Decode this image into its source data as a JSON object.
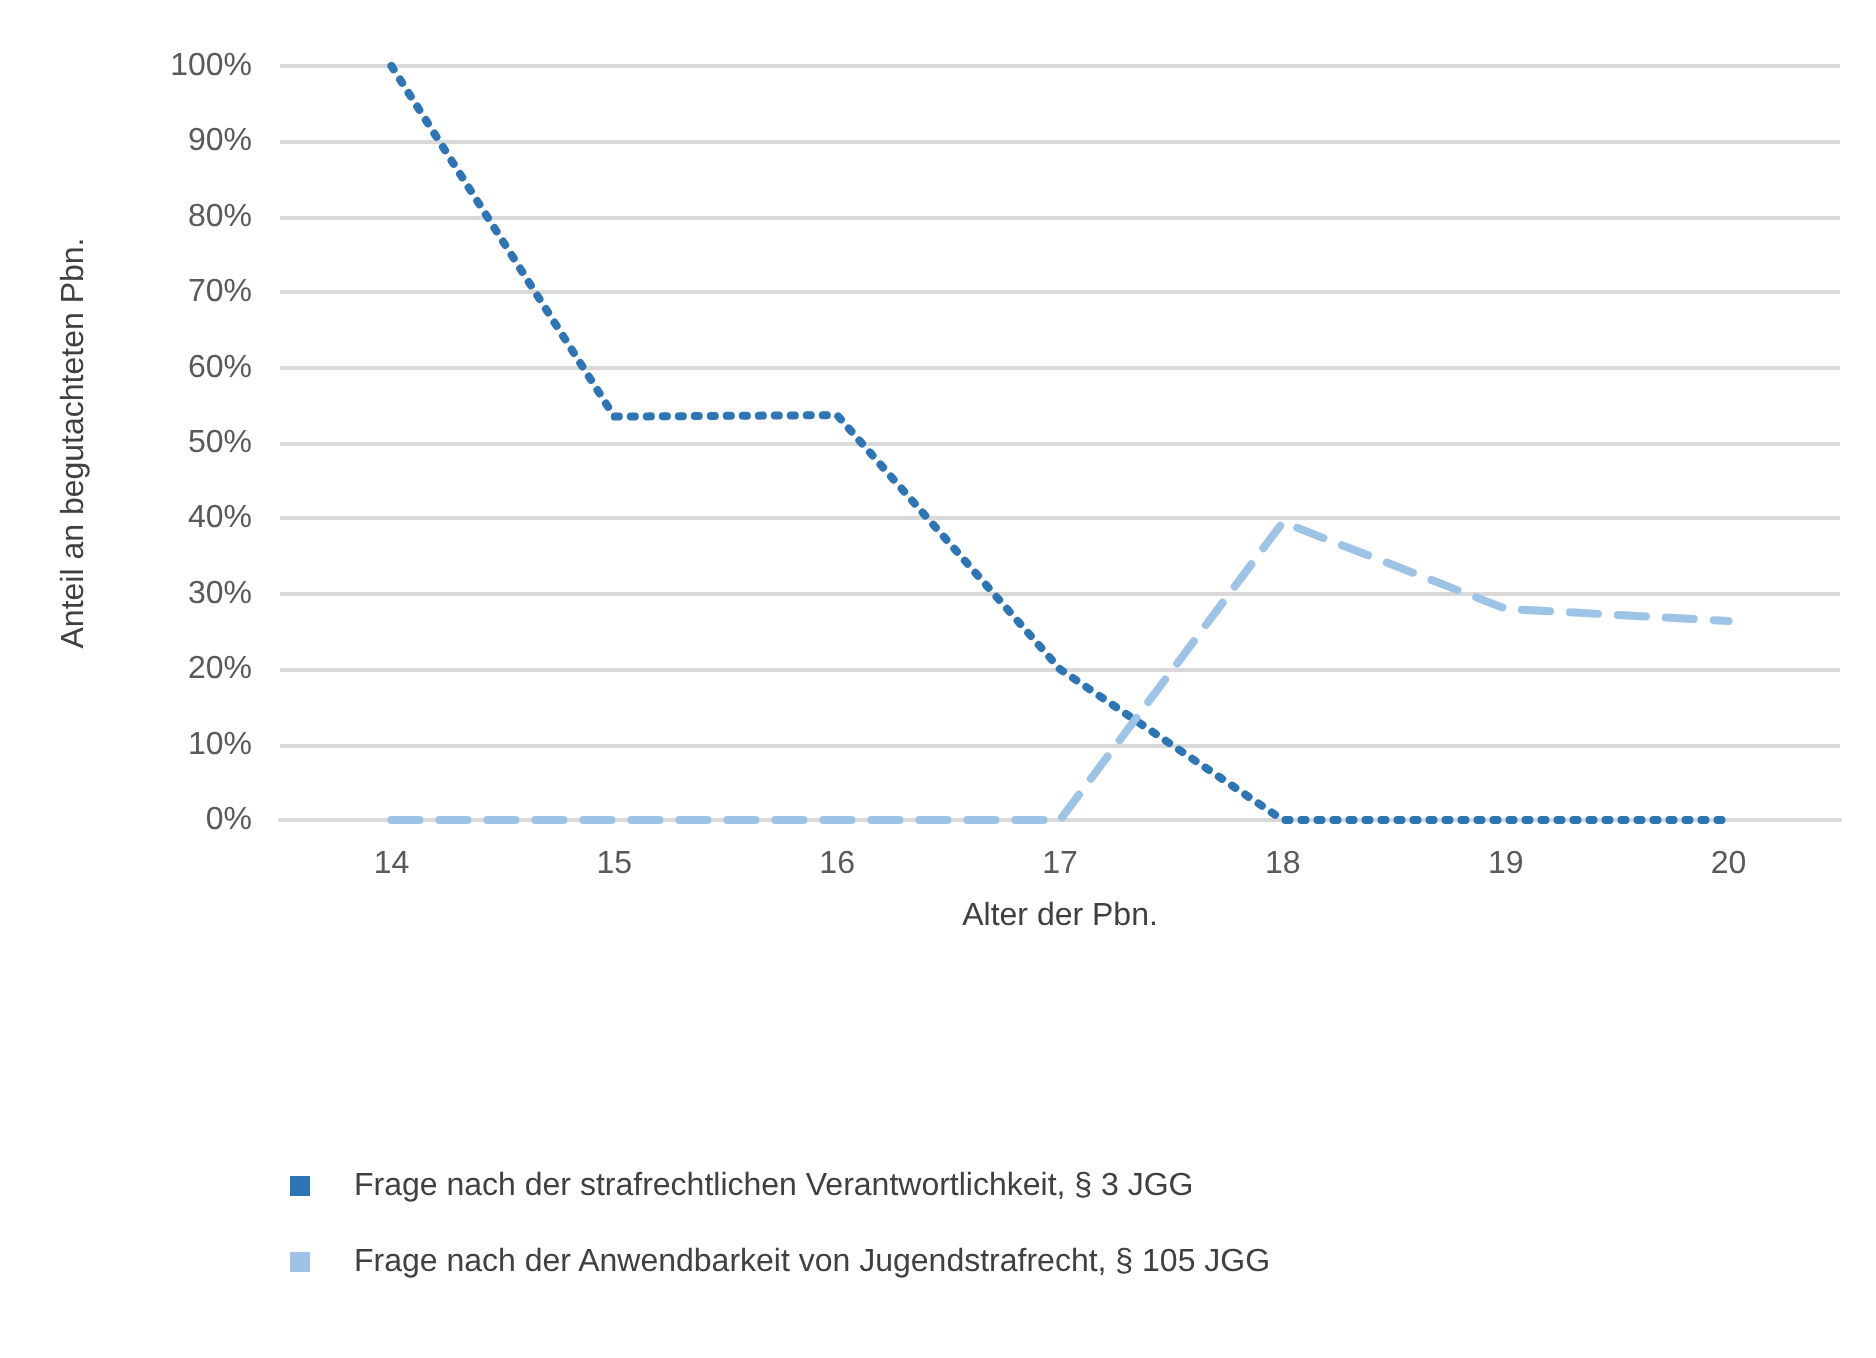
{
  "chart_data": {
    "type": "line",
    "xlabel": "Alter der Pbn.",
    "ylabel": "Anteil an begutachteten Pbn.",
    "categories": [
      "14",
      "15",
      "16",
      "17",
      "18",
      "19",
      "20"
    ],
    "series": [
      {
        "name": "Frage nach der strafrechtlichen Verantwortlichkeit, § 3 JGG",
        "color": "#2e75b6",
        "line_style": "dotted",
        "values": [
          100,
          53.5,
          53.7,
          20,
          0,
          0,
          0
        ]
      },
      {
        "name": "Frage nach der Anwendbarkeit von Jugendstrafrecht, § 105 JGG",
        "color": "#9dc3e6",
        "line_style": "dashed",
        "values": [
          0,
          0,
          0,
          0,
          39.5,
          28,
          26.4
        ]
      }
    ],
    "ylim": [
      0,
      100
    ],
    "yticks": [
      {
        "value": 0,
        "label": "0%"
      },
      {
        "value": 10,
        "label": "10%"
      },
      {
        "value": 20,
        "label": "20%"
      },
      {
        "value": 30,
        "label": "30%"
      },
      {
        "value": 40,
        "label": "40%"
      },
      {
        "value": 50,
        "label": "50%"
      },
      {
        "value": 60,
        "label": "60%"
      },
      {
        "value": 70,
        "label": "70%"
      },
      {
        "value": 80,
        "label": "80%"
      },
      {
        "value": 90,
        "label": "90%"
      },
      {
        "value": 100,
        "label": "100%"
      }
    ],
    "grid": "y",
    "legend": "bottom",
    "marker": "none"
  }
}
